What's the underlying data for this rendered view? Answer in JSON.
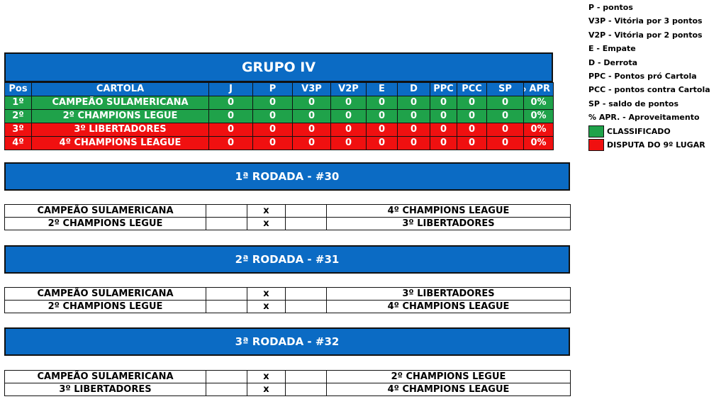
{
  "group": {
    "title": "GRUPO IV",
    "headers": [
      "Pos",
      "CARTOLA",
      "J",
      "P",
      "V3P",
      "V2P",
      "E",
      "D",
      "PPC",
      "PCC",
      "SP",
      "% APR"
    ],
    "rows": [
      {
        "status": "classified",
        "cells": [
          "1º",
          "CAMPEÃO SULAMERICANA",
          "0",
          "0",
          "0",
          "0",
          "0",
          "0",
          "0",
          "0",
          "0",
          "0%"
        ]
      },
      {
        "status": "classified",
        "cells": [
          "2º",
          "2º CHAMPIONS LEGUE",
          "0",
          "0",
          "0",
          "0",
          "0",
          "0",
          "0",
          "0",
          "0",
          "0%"
        ]
      },
      {
        "status": "playoff",
        "cells": [
          "3º",
          "3º LIBERTADORES",
          "0",
          "0",
          "0",
          "0",
          "0",
          "0",
          "0",
          "0",
          "0",
          "0%"
        ]
      },
      {
        "status": "playoff",
        "cells": [
          "4º",
          "4º CHAMPIONS LEAGUE",
          "0",
          "0",
          "0",
          "0",
          "0",
          "0",
          "0",
          "0",
          "0",
          "0%"
        ]
      }
    ]
  },
  "legend": {
    "items": [
      "P - pontos",
      "V3P - Vitória por 3 pontos",
      "V2P - Vitória por 2 pontos",
      "E - Empate",
      "D - Derrota",
      "PPC - Pontos pró Cartola",
      "PCC - pontos contra Cartola",
      "SP - saldo de pontos",
      "% APR. - Aproveitamento"
    ],
    "classified_label": "CLASSIFICADO",
    "playoff_label": "DISPUTA DO 9º LUGAR",
    "classified_color": "#1fa24a",
    "playoff_color": "#f01010"
  },
  "rounds": [
    {
      "title": "1ª RODADA - #30",
      "matches": [
        {
          "home": "CAMPEÃO SULAMERICANA",
          "home_score": "",
          "vs": "x",
          "away_score": "",
          "away": "4º CHAMPIONS LEAGUE"
        },
        {
          "home": "2º CHAMPIONS LEGUE",
          "home_score": "",
          "vs": "x",
          "away_score": "",
          "away": "3º LIBERTADORES"
        }
      ]
    },
    {
      "title": "2ª RODADA - #31",
      "matches": [
        {
          "home": "CAMPEÃO SULAMERICANA",
          "home_score": "",
          "vs": "x",
          "away_score": "",
          "away": "3º LIBERTADORES"
        },
        {
          "home": "2º CHAMPIONS LEGUE",
          "home_score": "",
          "vs": "x",
          "away_score": "",
          "away": "4º CHAMPIONS LEAGUE"
        }
      ]
    },
    {
      "title": "3ª RODADA - #32",
      "matches": [
        {
          "home": "CAMPEÃO SULAMERICANA",
          "home_score": "",
          "vs": "x",
          "away_score": "",
          "away": "2º CHAMPIONS LEGUE"
        },
        {
          "home": "3º LIBERTADORES",
          "home_score": "",
          "vs": "x",
          "away_score": "",
          "away": "4º CHAMPIONS LEAGUE"
        }
      ]
    }
  ]
}
